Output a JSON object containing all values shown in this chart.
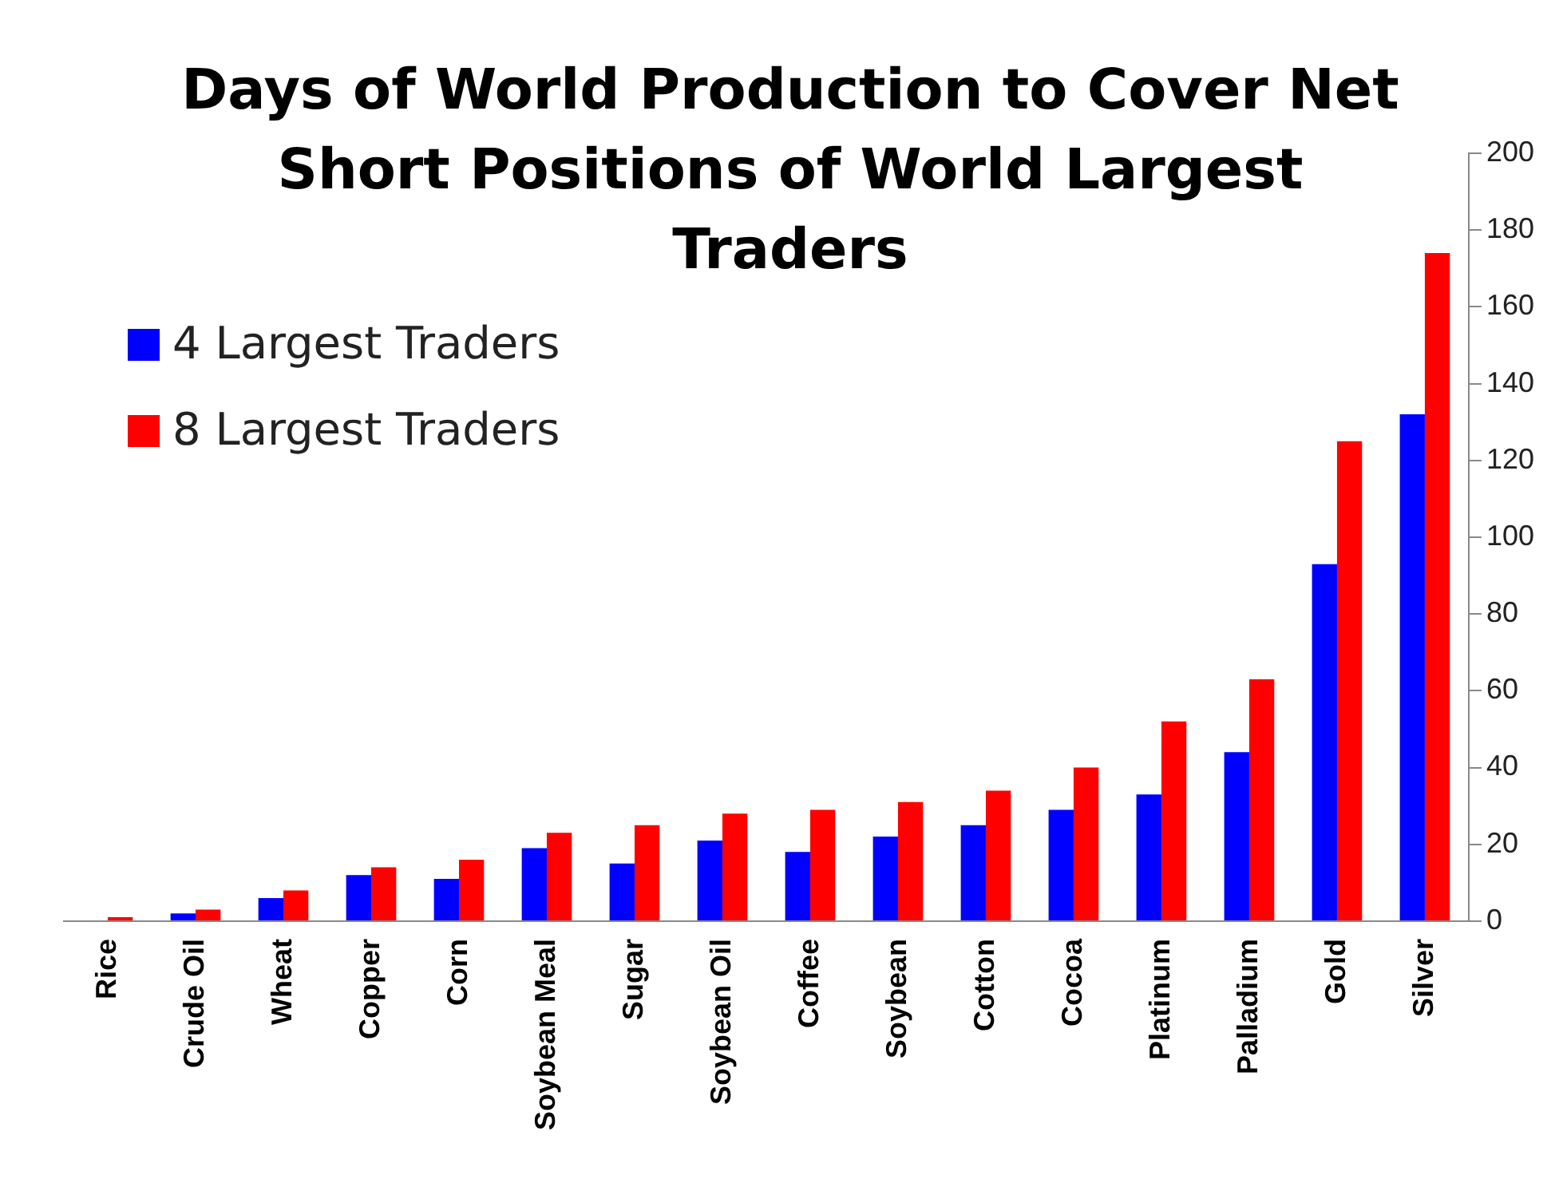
{
  "chart_data": {
    "type": "bar",
    "title": "Days of World Production to Cover Net Short Positions of World Largest Traders",
    "categories": [
      "Rice",
      "Crude Oil",
      "Wheat",
      "Copper",
      "Corn",
      "Soybean Meal",
      "Sugar",
      "Soybean Oil",
      "Coffee",
      "Soybean",
      "Cotton",
      "Cocoa",
      "Platinum",
      "Palladium",
      "Gold",
      "Silver"
    ],
    "series": [
      {
        "name": "4 Largest Traders",
        "color": "#0000ff",
        "values": [
          0,
          2,
          6,
          12,
          11,
          19,
          15,
          21,
          18,
          22,
          25,
          29,
          33,
          44,
          93,
          132
        ]
      },
      {
        "name": "8 Largest Traders",
        "color": "#ff0000",
        "values": [
          1,
          3,
          8,
          14,
          16,
          23,
          25,
          28,
          29,
          31,
          34,
          40,
          52,
          63,
          125,
          174
        ]
      }
    ],
    "ylim": [
      0,
      200
    ],
    "yticks": [
      0,
      20,
      40,
      60,
      80,
      100,
      120,
      140,
      160,
      180,
      200
    ],
    "grid": false,
    "legend": "top left"
  }
}
